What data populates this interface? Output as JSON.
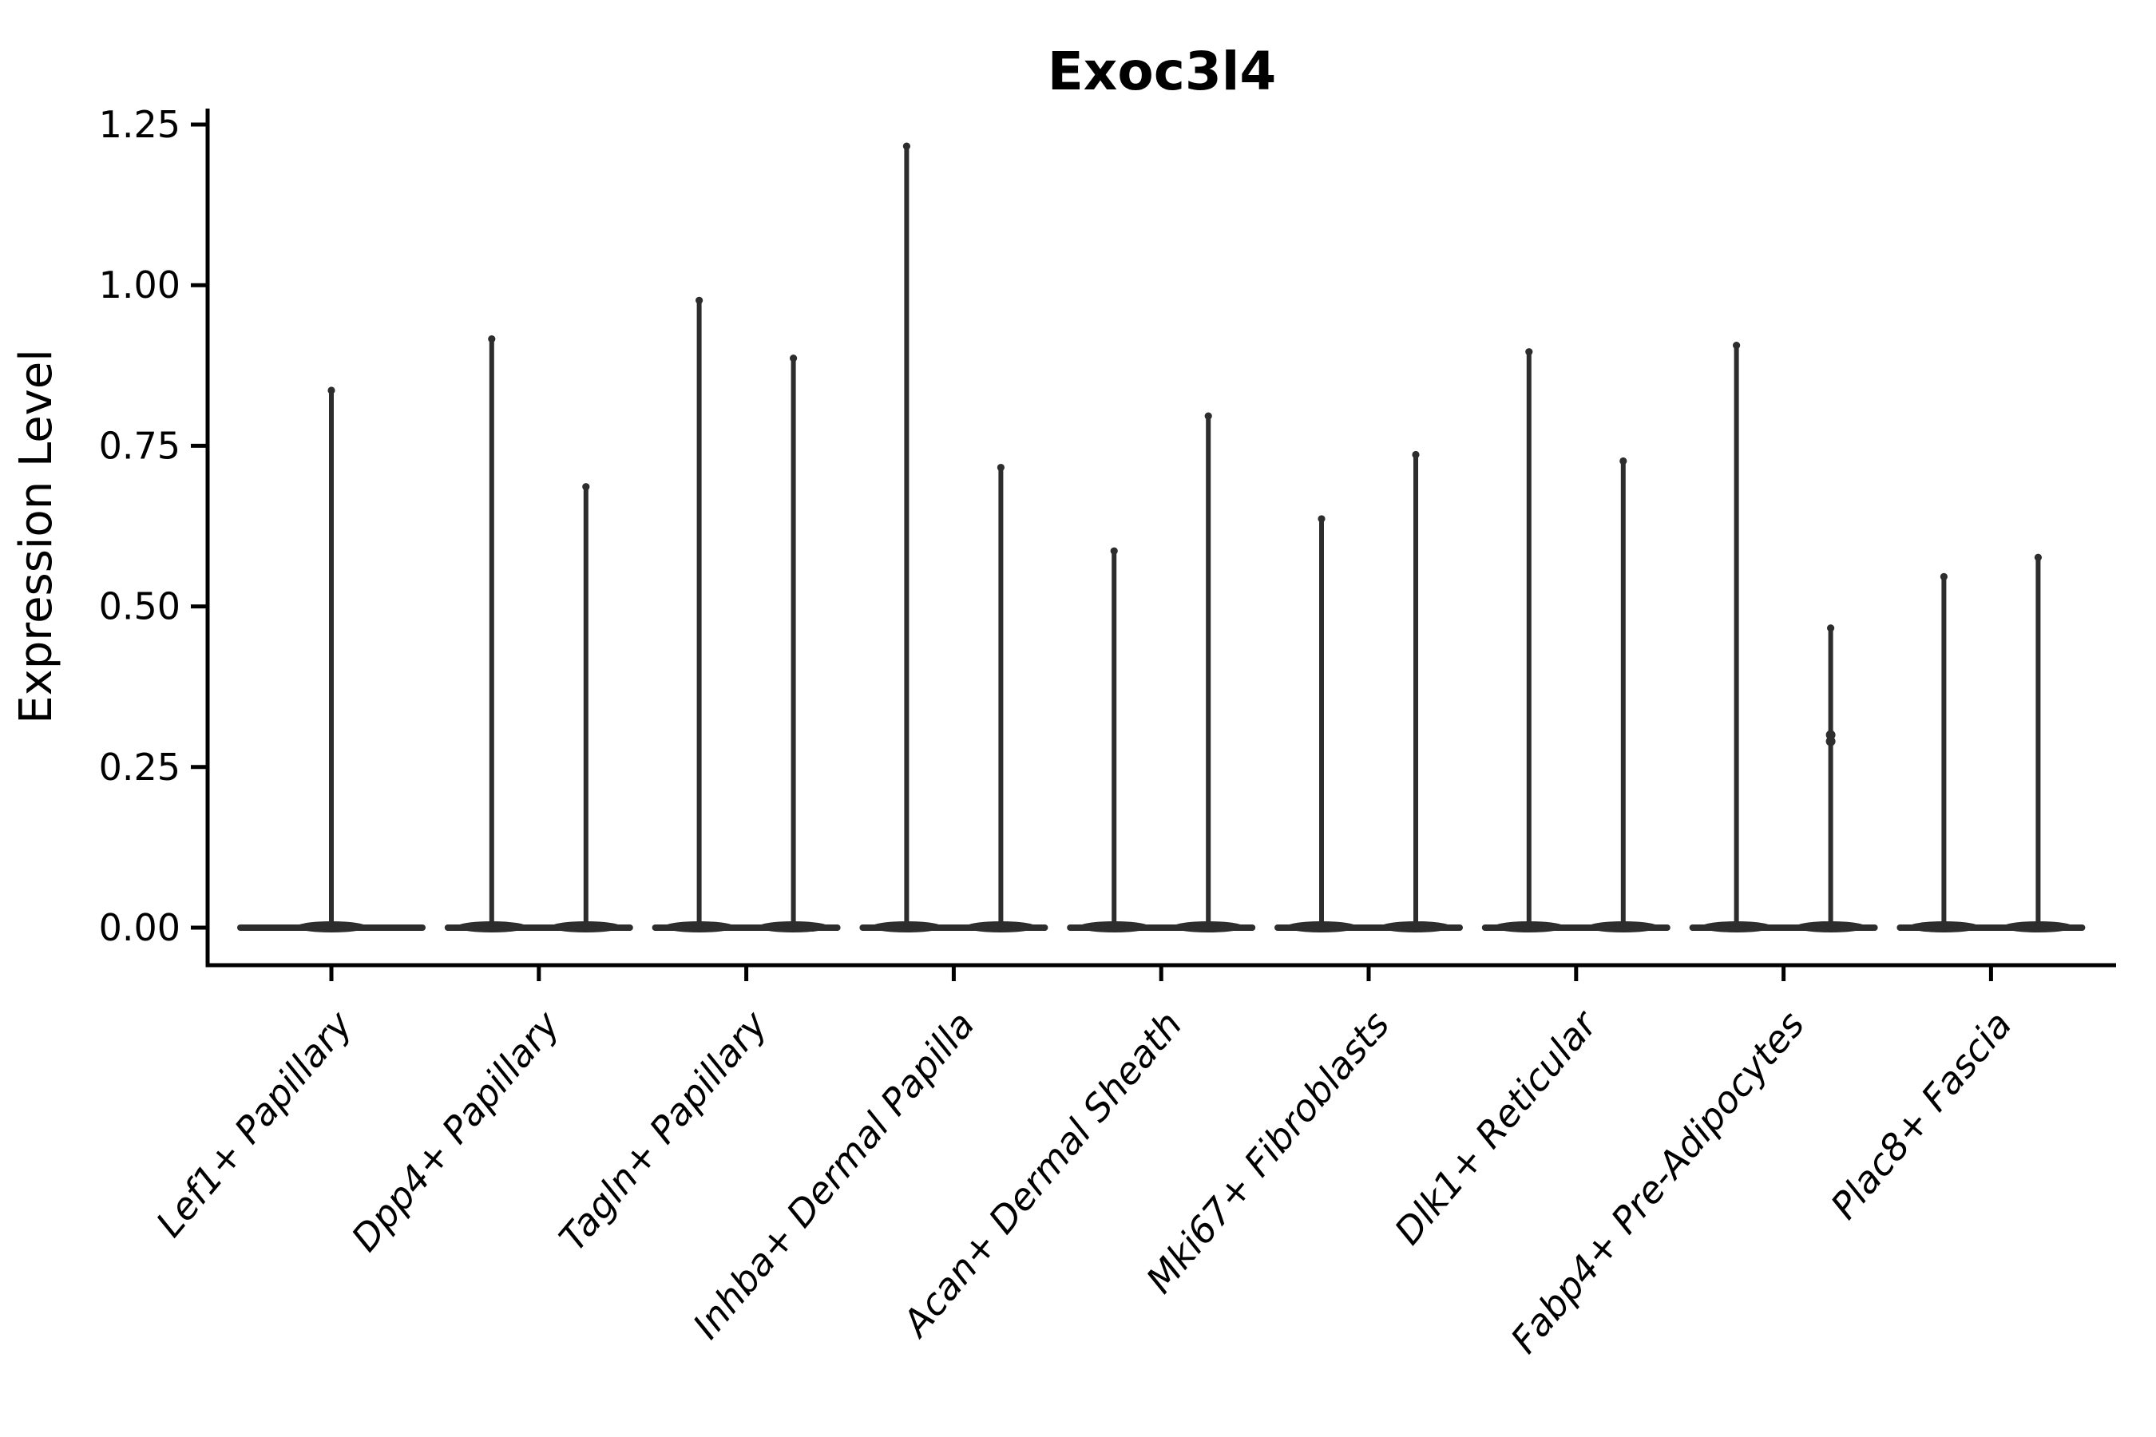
{
  "chart_data": {
    "type": "violin",
    "title": "Exoc3l4",
    "ylabel": "Expression Level",
    "xlabel": "",
    "ylim": [
      -0.07,
      1.27
    ],
    "yticks": [
      "0.00",
      "0.25",
      "0.50",
      "0.75",
      "1.00",
      "1.25"
    ],
    "grid": false,
    "legend_position": "none",
    "line_color": "#2d2d2d",
    "axis_color": "#000000",
    "categories": [
      "Lef1+ Papillary",
      "Dpp4+ Papillary",
      "Tagln+ Papillary",
      "Inhba+ Dermal Papilla",
      "Acan+ Dermal Sheath",
      "Mki67+ Fibroblasts",
      "Dlk1+ Reticular",
      "Fabp4+ Pre-Adipocytes",
      "Plac8+ Fascia"
    ],
    "series": [
      {
        "category": "Lef1+ Papillary",
        "violin_max": [
          0.84
        ]
      },
      {
        "category": "Dpp4+ Papillary",
        "violin_max": [
          0.92,
          0.69
        ]
      },
      {
        "category": "Tagln+ Papillary",
        "violin_max": [
          0.98,
          0.89
        ]
      },
      {
        "category": "Inhba+ Dermal Papilla",
        "violin_max": [
          1.22,
          0.72
        ]
      },
      {
        "category": "Acan+ Dermal Sheath",
        "violin_max": [
          0.59,
          0.8
        ]
      },
      {
        "category": "Mki67+ Fibroblasts",
        "violin_max": [
          0.64,
          0.74
        ]
      },
      {
        "category": "Dlk1+ Reticular",
        "violin_max": [
          0.9,
          0.73
        ]
      },
      {
        "category": "Fabp4+ Pre-Adipocytes",
        "violin_max": [
          0.91,
          0.47
        ],
        "extra_points": [
          0.3,
          0.29
        ]
      },
      {
        "category": "Plac8+ Fascia",
        "violin_max": [
          0.55,
          0.58
        ]
      }
    ],
    "description": "Violin plot of Exoc3l4 expression; each group shows a flat density base at 0 with thin needle(s) up to the maximum expression value."
  }
}
